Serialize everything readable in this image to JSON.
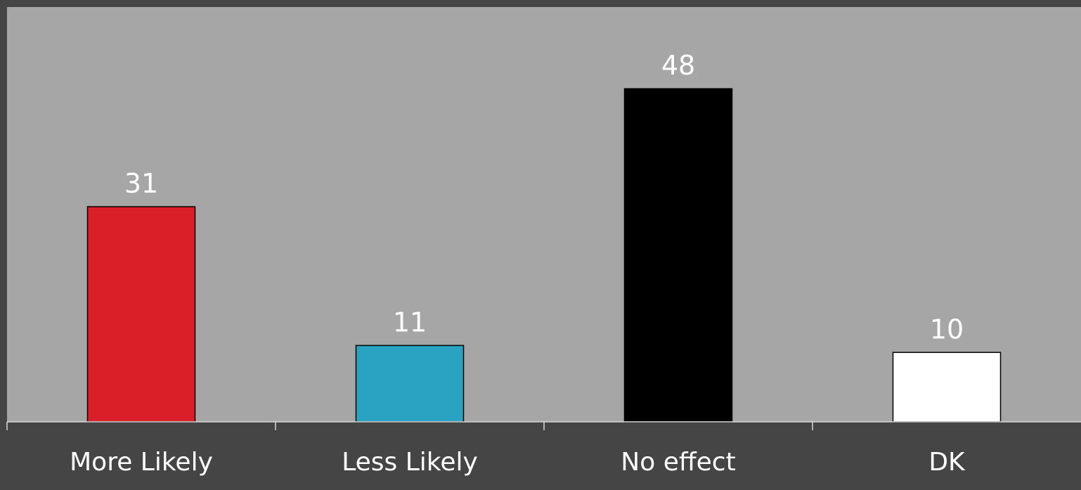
{
  "chart_data": {
    "type": "bar",
    "categories": [
      "More Likely",
      "Less Likely",
      "No effect",
      "DK"
    ],
    "values": [
      31,
      11,
      48,
      10
    ],
    "ylim": [
      0,
      60
    ],
    "colors": [
      "#DA1F28",
      "#2AA3C2",
      "#000000",
      "#FFFFFF"
    ],
    "title": "",
    "xlabel": "",
    "ylabel": "",
    "grid": false,
    "legend": "none",
    "data_labels": true
  },
  "colors": {
    "background": "#454545",
    "plot_area": "#A6A6A6",
    "axis_line": "#D9D9D9",
    "label_text": "#FFFFFF"
  }
}
